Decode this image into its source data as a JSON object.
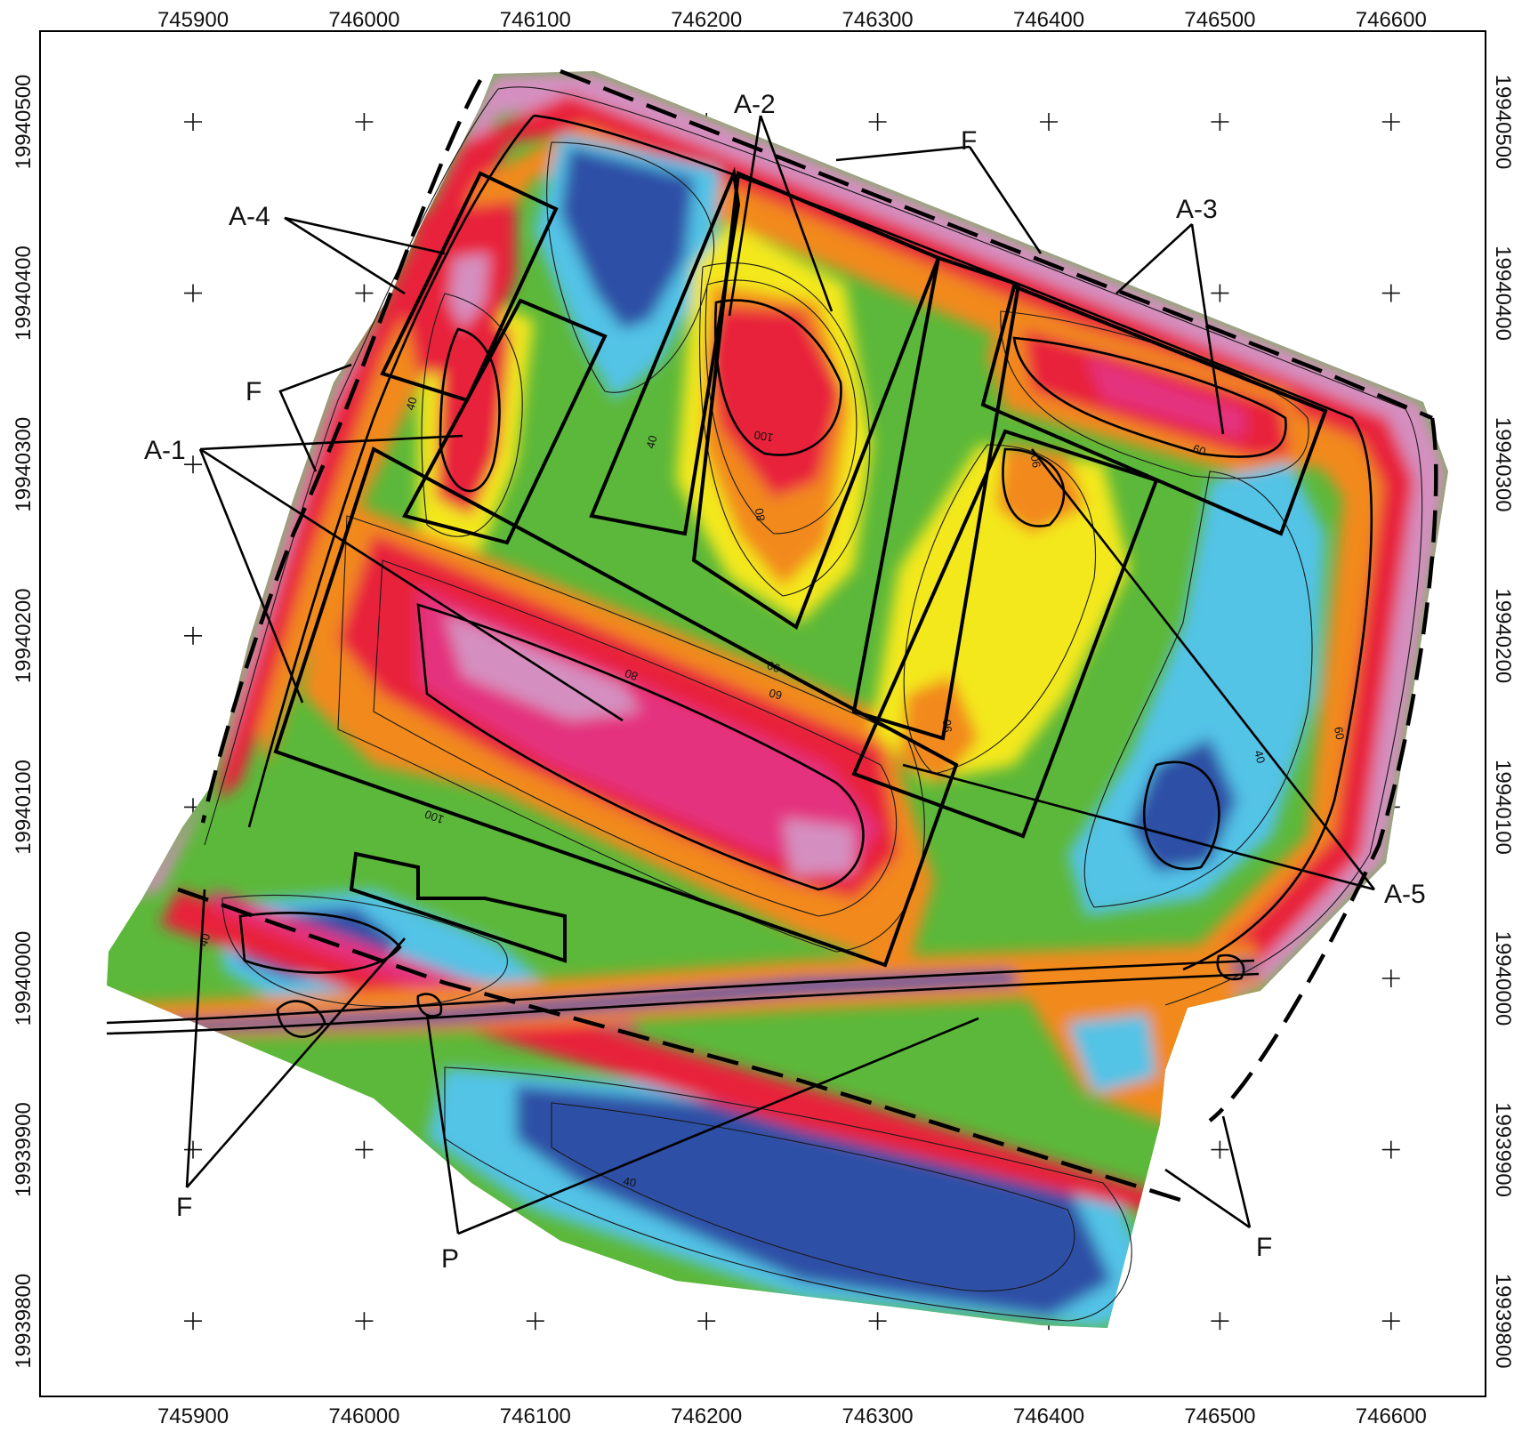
{
  "map": {
    "x_tick_labels": [
      "745900",
      "746000",
      "746100",
      "746200",
      "746300",
      "746400",
      "746500",
      "746600"
    ],
    "y_tick_labels": [
      "19940500",
      "19940400",
      "19940300",
      "19940200",
      "19940100",
      "19940000",
      "19939900",
      "19939800"
    ],
    "callouts": {
      "a1": "A-1",
      "a2": "A-2",
      "a3": "A-3",
      "a4": "A-4",
      "a5": "A-5",
      "f": "F",
      "p": "P"
    },
    "contour_labels": {
      "c40": "40",
      "c60": "60",
      "c80": "80",
      "c90": "90",
      "c100": "100"
    },
    "colors": {
      "very_low": "#2f4fa6",
      "low": "#52c3e6",
      "mid_low": "#5cb83a",
      "mid": "#f3e81f",
      "mid_high": "#f2891e",
      "high": "#e8213a",
      "very_high": "#e4337e",
      "extreme": "#d48fc0"
    }
  }
}
